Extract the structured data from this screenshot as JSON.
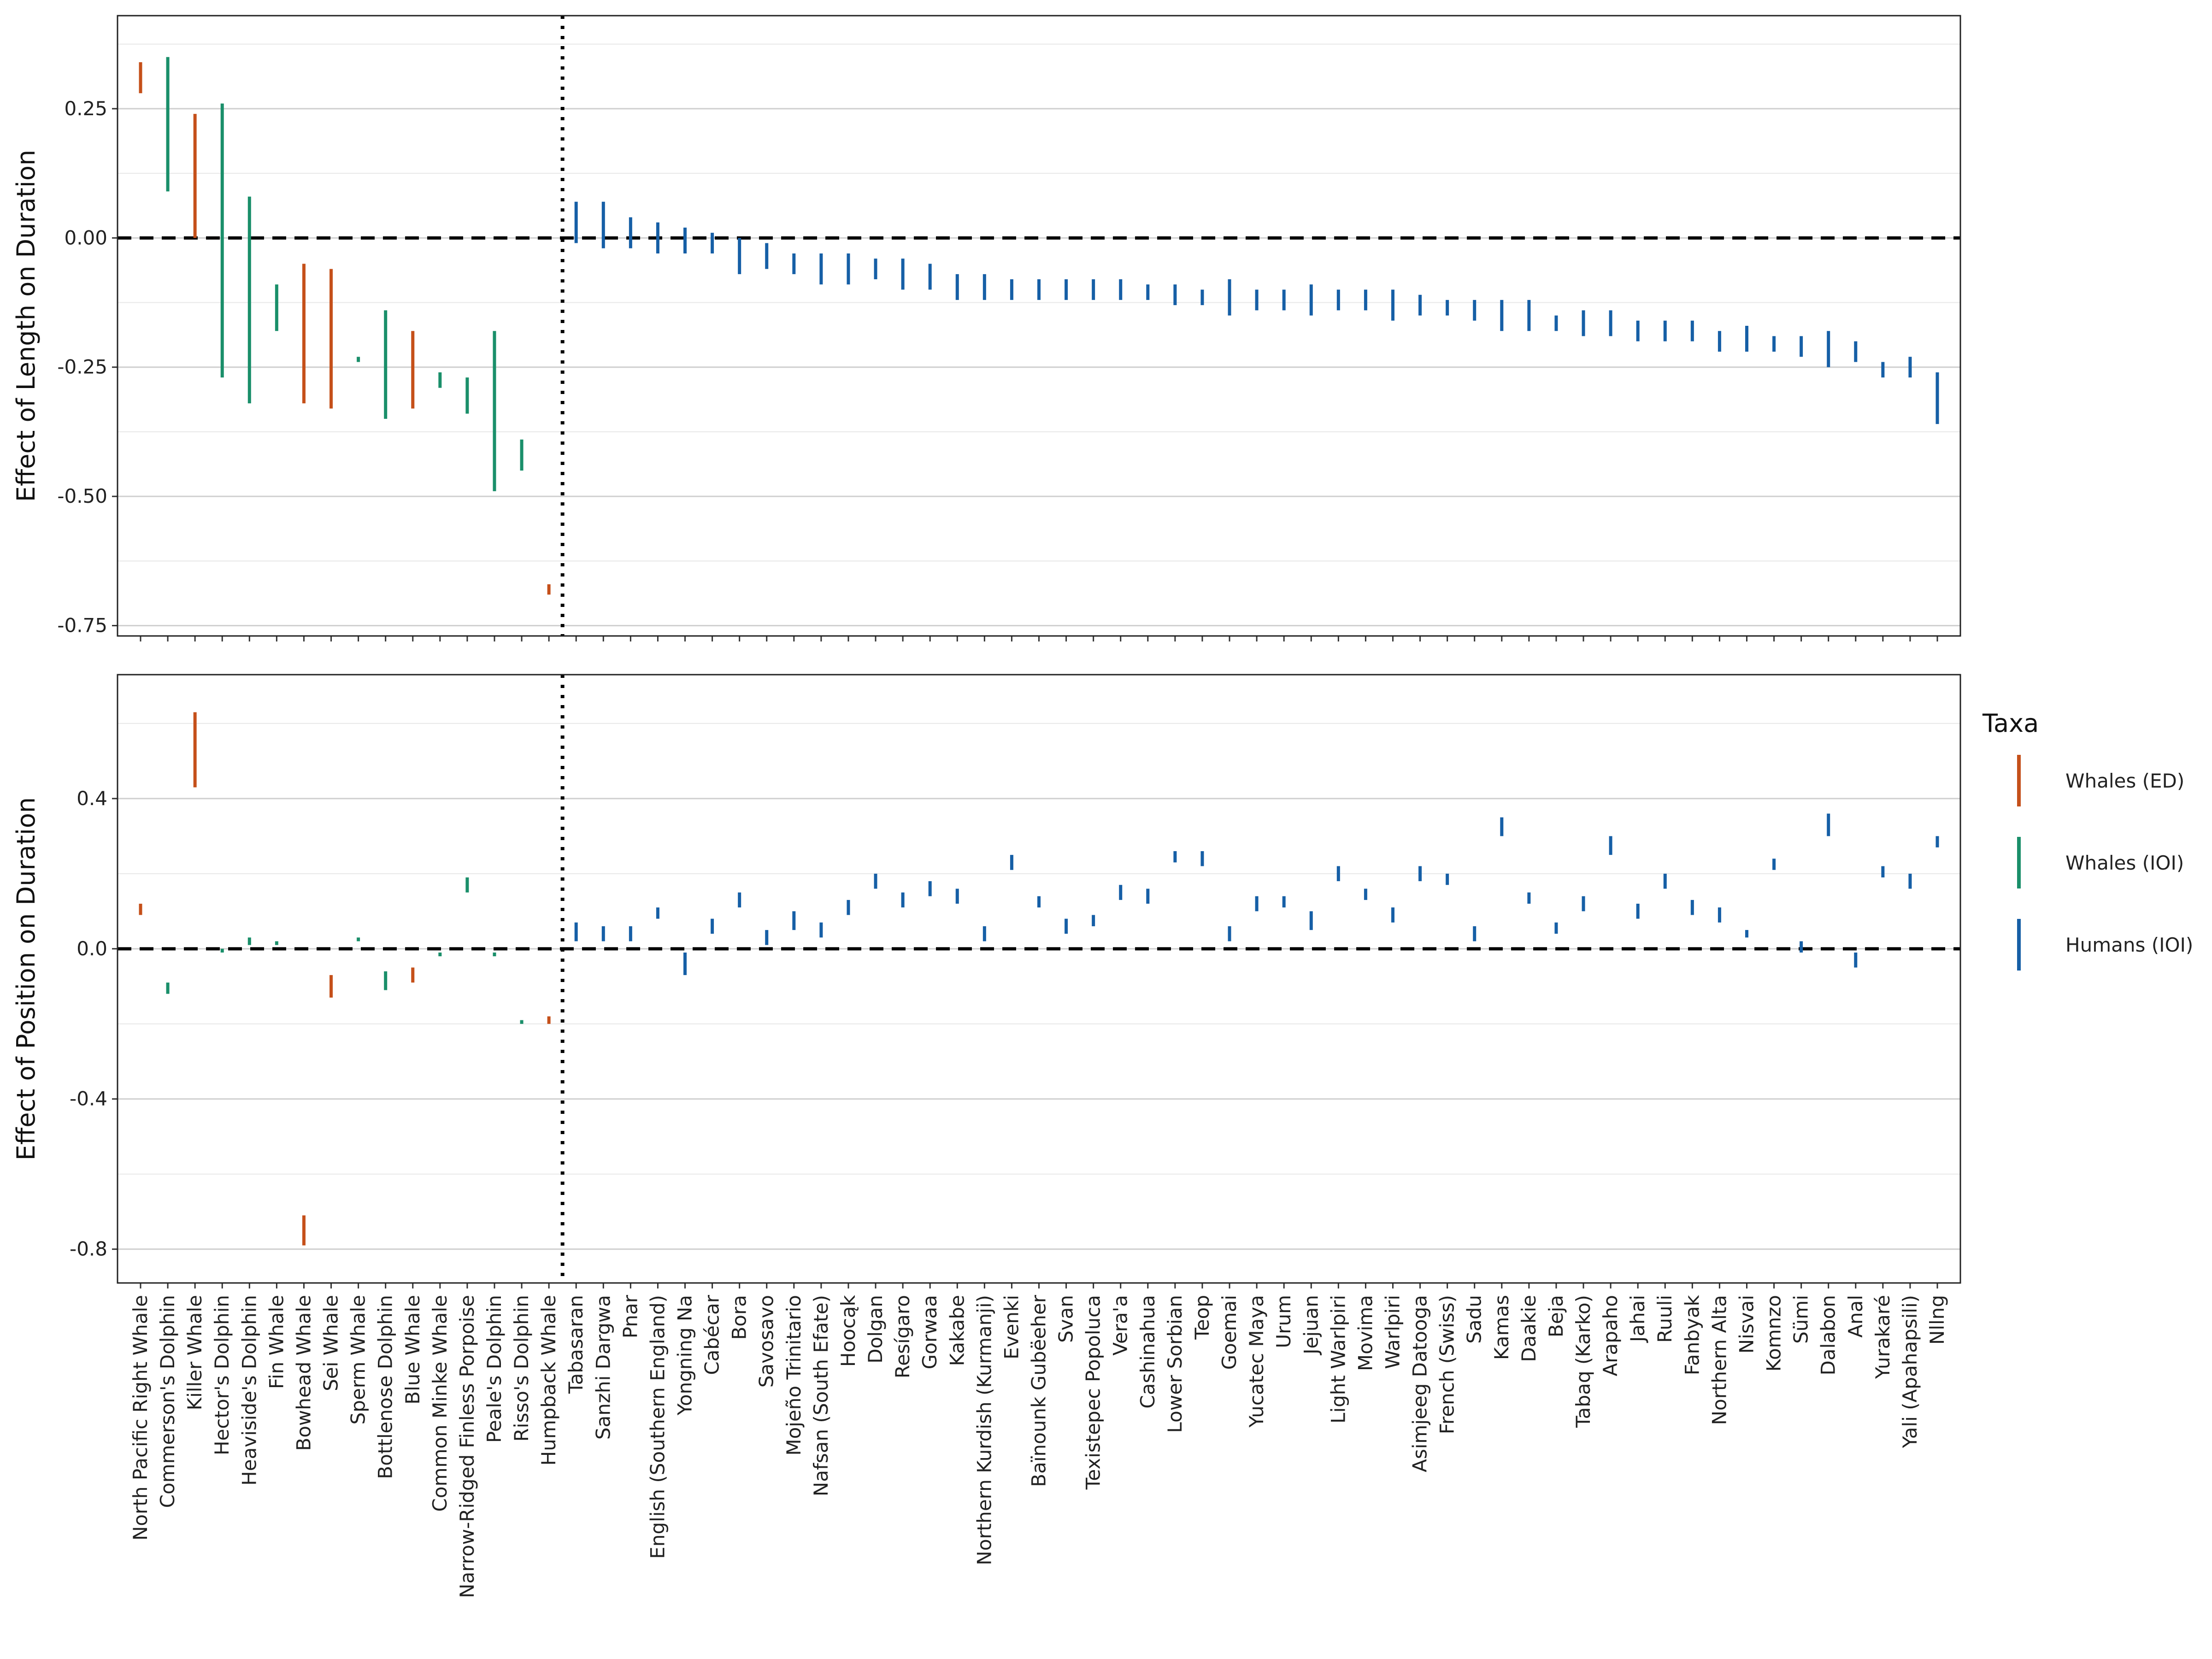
{
  "chart_data": {
    "type": "errorbar",
    "categories": [
      "North Pacific Right Whale",
      "Commerson's Dolphin",
      "Killer Whale",
      "Hector's Dolphin",
      "Heaviside's Dolphin",
      "Fin Whale",
      "Bowhead Whale",
      "Sei Whale",
      "Sperm Whale",
      "Bottlenose Dolphin",
      "Blue Whale",
      "Common Minke Whale",
      "Narrow-Ridged Finless Porpoise",
      "Peale's Dolphin",
      "Risso's Dolphin",
      "Humpback Whale",
      "Tabasaran",
      "Sanzhi Dargwa",
      "Pnar",
      "English (Southern England)",
      "Yongning Na",
      "Cabécar",
      "Bora",
      "Savosavo",
      "Mojeño Trinitario",
      "Nafsan (South Efate)",
      "Hoocąk",
      "Dolgan",
      "Resígaro",
      "Gorwaa",
      "Kakabe",
      "Northern Kurdish (Kurmanji)",
      "Evenki",
      "Baïnounk Gubëeher",
      "Svan",
      "Texistepec Popoluca",
      "Vera'a",
      "Cashinahua",
      "Lower Sorbian",
      "Teop",
      "Goemai",
      "Yucatec Maya",
      "Urum",
      "Jejuan",
      "Light Warlpiri",
      "Movima",
      "Warlpiri",
      "Asimjeeg Datooga",
      "French (Swiss)",
      "Sadu",
      "Kamas",
      "Daakie",
      "Beja",
      "Tabaq (Karko)",
      "Arapaho",
      "Jahai",
      "Ruuli",
      "Fanbyak",
      "Northern Alta",
      "Nisvai",
      "Komnzo",
      "Sümi",
      "Dalabon",
      "Anal",
      "Yurakaré",
      "Yali (Apahapsili)",
      "Nllng"
    ],
    "taxa_index": [
      0,
      1,
      0,
      1,
      1,
      1,
      0,
      0,
      1,
      1,
      0,
      1,
      1,
      1,
      1,
      0,
      2,
      2,
      2,
      2,
      2,
      2,
      2,
      2,
      2,
      2,
      2,
      2,
      2,
      2,
      2,
      2,
      2,
      2,
      2,
      2,
      2,
      2,
      2,
      2,
      2,
      2,
      2,
      2,
      2,
      2,
      2,
      2,
      2,
      2,
      2,
      2,
      2,
      2,
      2,
      2,
      2,
      2,
      2,
      2,
      2,
      2,
      2,
      2,
      2,
      2,
      2
    ],
    "legend": {
      "title": "Taxa",
      "entries": [
        {
          "name": "Whales (ED)",
          "color": "#c5501a"
        },
        {
          "name": "Whales (IOI)",
          "color": "#1a8f6a"
        },
        {
          "name": "Humans (IOI)",
          "color": "#165fa6"
        }
      ],
      "placement": "right"
    },
    "vertical_reference_after": "Humpback Whale",
    "panels": [
      {
        "ylabel": "Effect of Length on Duration",
        "ylim": [
          -0.77,
          0.43
        ],
        "yticks": [
          0.25,
          0.0,
          -0.25,
          -0.5,
          -0.75
        ],
        "ytick_labels": [
          "0.25",
          "0.00",
          "-0.25",
          "-0.50",
          "-0.75"
        ],
        "reference_line": 0,
        "intervals": [
          [
            0.28,
            0.34
          ],
          [
            0.09,
            0.35
          ],
          [
            0.0,
            0.24
          ],
          [
            -0.27,
            0.26
          ],
          [
            -0.32,
            0.08
          ],
          [
            -0.18,
            -0.09
          ],
          [
            -0.32,
            -0.05
          ],
          [
            -0.33,
            -0.06
          ],
          [
            -0.24,
            -0.23
          ],
          [
            -0.35,
            -0.14
          ],
          [
            -0.33,
            -0.18
          ],
          [
            -0.29,
            -0.26
          ],
          [
            -0.34,
            -0.27
          ],
          [
            -0.49,
            -0.18
          ],
          [
            -0.45,
            -0.39
          ],
          [
            -0.69,
            -0.67
          ],
          [
            -0.01,
            0.07
          ],
          [
            -0.02,
            0.07
          ],
          [
            -0.02,
            0.04
          ],
          [
            -0.03,
            0.03
          ],
          [
            -0.03,
            0.02
          ],
          [
            -0.03,
            0.01
          ],
          [
            -0.07,
            0.0
          ],
          [
            -0.06,
            -0.01
          ],
          [
            -0.07,
            -0.03
          ],
          [
            -0.09,
            -0.03
          ],
          [
            -0.09,
            -0.03
          ],
          [
            -0.08,
            -0.04
          ],
          [
            -0.1,
            -0.04
          ],
          [
            -0.1,
            -0.05
          ],
          [
            -0.12,
            -0.07
          ],
          [
            -0.12,
            -0.07
          ],
          [
            -0.12,
            -0.08
          ],
          [
            -0.12,
            -0.08
          ],
          [
            -0.12,
            -0.08
          ],
          [
            -0.12,
            -0.08
          ],
          [
            -0.12,
            -0.08
          ],
          [
            -0.12,
            -0.09
          ],
          [
            -0.13,
            -0.09
          ],
          [
            -0.13,
            -0.1
          ],
          [
            -0.15,
            -0.08
          ],
          [
            -0.14,
            -0.1
          ],
          [
            -0.14,
            -0.1
          ],
          [
            -0.15,
            -0.09
          ],
          [
            -0.14,
            -0.1
          ],
          [
            -0.14,
            -0.1
          ],
          [
            -0.16,
            -0.1
          ],
          [
            -0.15,
            -0.11
          ],
          [
            -0.15,
            -0.12
          ],
          [
            -0.16,
            -0.12
          ],
          [
            -0.18,
            -0.12
          ],
          [
            -0.18,
            -0.12
          ],
          [
            -0.18,
            -0.15
          ],
          [
            -0.19,
            -0.14
          ],
          [
            -0.19,
            -0.14
          ],
          [
            -0.2,
            -0.16
          ],
          [
            -0.2,
            -0.16
          ],
          [
            -0.2,
            -0.16
          ],
          [
            -0.22,
            -0.18
          ],
          [
            -0.22,
            -0.17
          ],
          [
            -0.22,
            -0.19
          ],
          [
            -0.23,
            -0.19
          ],
          [
            -0.25,
            -0.18
          ],
          [
            -0.24,
            -0.2
          ],
          [
            -0.27,
            -0.24
          ],
          [
            -0.27,
            -0.23
          ],
          [
            -0.36,
            -0.26
          ]
        ]
      },
      {
        "ylabel": "Effect of Position on Duration",
        "ylim": [
          -0.89,
          0.73
        ],
        "yticks": [
          0.4,
          0.0,
          -0.4,
          -0.8
        ],
        "ytick_labels": [
          "0.4",
          "0.0",
          "-0.4",
          "-0.8"
        ],
        "reference_line": 0,
        "intervals": [
          [
            0.09,
            0.12
          ],
          [
            -0.12,
            -0.09
          ],
          [
            0.43,
            0.63
          ],
          [
            -0.01,
            0.0
          ],
          [
            0.01,
            0.03
          ],
          [
            0.01,
            0.02
          ],
          [
            -0.79,
            -0.71
          ],
          [
            -0.13,
            -0.07
          ],
          [
            0.02,
            0.03
          ],
          [
            -0.11,
            -0.06
          ],
          [
            -0.09,
            -0.05
          ],
          [
            -0.02,
            -0.01
          ],
          [
            0.15,
            0.19
          ],
          [
            -0.02,
            -0.01
          ],
          [
            -0.2,
            -0.19
          ],
          [
            -0.2,
            -0.18
          ],
          [
            0.02,
            0.07
          ],
          [
            0.02,
            0.06
          ],
          [
            0.02,
            0.06
          ],
          [
            0.08,
            0.11
          ],
          [
            -0.07,
            -0.01
          ],
          [
            0.04,
            0.08
          ],
          [
            0.11,
            0.15
          ],
          [
            0.01,
            0.05
          ],
          [
            0.05,
            0.1
          ],
          [
            0.03,
            0.07
          ],
          [
            0.09,
            0.13
          ],
          [
            0.16,
            0.2
          ],
          [
            0.11,
            0.15
          ],
          [
            0.14,
            0.18
          ],
          [
            0.12,
            0.16
          ],
          [
            0.02,
            0.06
          ],
          [
            0.21,
            0.25
          ],
          [
            0.11,
            0.14
          ],
          [
            0.04,
            0.08
          ],
          [
            0.06,
            0.09
          ],
          [
            0.13,
            0.17
          ],
          [
            0.12,
            0.16
          ],
          [
            0.23,
            0.26
          ],
          [
            0.22,
            0.26
          ],
          [
            0.02,
            0.06
          ],
          [
            0.1,
            0.14
          ],
          [
            0.11,
            0.14
          ],
          [
            0.05,
            0.1
          ],
          [
            0.18,
            0.22
          ],
          [
            0.13,
            0.16
          ],
          [
            0.07,
            0.11
          ],
          [
            0.18,
            0.22
          ],
          [
            0.17,
            0.2
          ],
          [
            0.02,
            0.06
          ],
          [
            0.3,
            0.35
          ],
          [
            0.12,
            0.15
          ],
          [
            0.04,
            0.07
          ],
          [
            0.1,
            0.14
          ],
          [
            0.25,
            0.3
          ],
          [
            0.08,
            0.12
          ],
          [
            0.16,
            0.2
          ],
          [
            0.09,
            0.13
          ],
          [
            0.07,
            0.11
          ],
          [
            0.03,
            0.05
          ],
          [
            0.21,
            0.24
          ],
          [
            -0.01,
            0.02
          ],
          [
            0.3,
            0.36
          ],
          [
            -0.05,
            -0.01
          ],
          [
            0.19,
            0.22
          ],
          [
            0.16,
            0.2
          ],
          [
            0.27,
            0.3
          ]
        ]
      }
    ]
  }
}
